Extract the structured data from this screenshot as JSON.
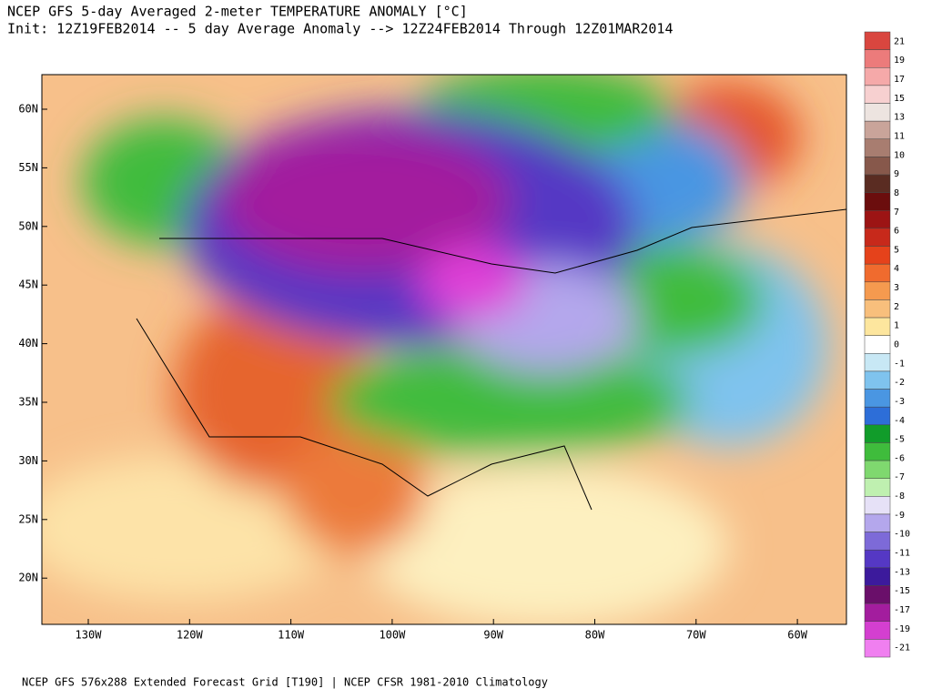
{
  "header": {
    "title": "NCEP GFS 5-day Averaged 2-meter TEMPERATURE ANOMALY [°C]",
    "subtitle": "Init: 12Z19FEB2014 -- 5 day Average Anomaly --> 12Z24FEB2014 Through 12Z01MAR2014"
  },
  "map": {
    "lat_labels": [
      "60N",
      "55N",
      "50N",
      "45N",
      "40N",
      "35N",
      "30N",
      "25N",
      "20N"
    ],
    "lon_labels": [
      "130W",
      "120W",
      "110W",
      "100W",
      "90W",
      "80W",
      "70W",
      "60W"
    ]
  },
  "colorbar": {
    "labels": [
      "21",
      "19",
      "17",
      "15",
      "13",
      "11",
      "10",
      "9",
      "8",
      "7",
      "6",
      "5",
      "4",
      "3",
      "2",
      "1",
      "0",
      "-1",
      "-2",
      "-3",
      "-4",
      "-5",
      "-6",
      "-7",
      "-8",
      "-9",
      "-10",
      "-11",
      "-13",
      "-15",
      "-17",
      "-19",
      "-21"
    ],
    "colors": [
      "#d9463f",
      "#ec7b7b",
      "#f5a9a9",
      "#f7d0d0",
      "#ede4e0",
      "#c9a49a",
      "#a87d70",
      "#87584b",
      "#5a2c22",
      "#6b0d0d",
      "#9c1414",
      "#c7291b",
      "#e5421b",
      "#f06b2e",
      "#f59a4f",
      "#f8bf7c",
      "#fde69e",
      "#ffffff",
      "#c8e8f5",
      "#7fc3ee",
      "#4a96e2",
      "#2d6ed8",
      "#119c2a",
      "#3fbc3c",
      "#7fd86f",
      "#bff0b0",
      "#e6e1f7",
      "#b4a7ec",
      "#7d6ad8",
      "#5538c4",
      "#3c1a9c",
      "#6a0f6a",
      "#a31d9e",
      "#d43fd0",
      "#f07ff0"
    ]
  },
  "footer": "NCEP GFS 576x288 Extended Forecast Grid [T190] | NCEP CFSR 1981-2010 Climatology"
}
